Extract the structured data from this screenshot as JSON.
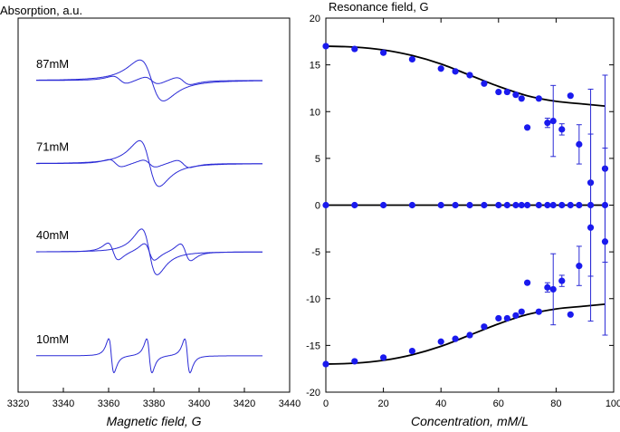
{
  "colors": {
    "spectra": "#2b2bd6",
    "points": "#1a1aee",
    "fit": "#000000"
  },
  "chart_data": [
    {
      "type": "line",
      "ylabel": "Absorption, a.u.",
      "xlabel": "Magnetic field, G",
      "xlim": [
        3320,
        3440
      ],
      "xticks": [
        "3320",
        "3340",
        "3360",
        "3380",
        "3400",
        "3420",
        "3440"
      ],
      "yticks": [],
      "grid": false,
      "spectra": [
        {
          "label": "87mM",
          "center": 3379,
          "width": 9.0,
          "amp": 0.85,
          "hyperfine": 14.0,
          "hf_width": 5.5,
          "hf_amp": 0.22,
          "baseline": 3.0
        },
        {
          "label": "71mM",
          "center": 3378,
          "width": 7.5,
          "amp": 0.95,
          "hyperfine": 15.0,
          "hf_width": 5.0,
          "hf_amp": 0.22,
          "baseline": 2.2
        },
        {
          "label": "40mM",
          "center": 3378,
          "width": 6.0,
          "amp": 0.95,
          "hyperfine": 16.0,
          "hf_width": 4.0,
          "hf_amp": 0.5,
          "baseline": 1.35
        },
        {
          "label": "10mM",
          "center": 3378,
          "width": 2.0,
          "amp": 0,
          "hyperfine": 16.8,
          "hf_width": 2.0,
          "hf_amp": 1.0,
          "baseline": 0.35
        }
      ]
    },
    {
      "type": "scatter",
      "ylabel": "Resonance field, G",
      "xlabel": "Concentration, mM/L",
      "xlim": [
        0,
        100
      ],
      "ylim": [
        -20,
        20
      ],
      "xticks": [
        "0",
        "20",
        "40",
        "60",
        "80",
        "100"
      ],
      "yticks": [
        "-20",
        "-15",
        "-10",
        "-5",
        "0",
        "5",
        "10",
        "15",
        "20"
      ],
      "grid": false,
      "series": [
        {
          "x": [
            0,
            10,
            20,
            30,
            40,
            45,
            50,
            55,
            60,
            63,
            66,
            68,
            70,
            74,
            77,
            79,
            82,
            85,
            88,
            92,
            97
          ],
          "y": [
            17.0,
            16.7,
            16.3,
            15.6,
            14.6,
            14.3,
            13.9,
            13.0,
            12.1,
            12.1,
            11.8,
            11.4,
            8.3,
            11.4,
            8.8,
            9.0,
            8.1,
            11.7,
            6.5,
            2.4,
            3.9
          ],
          "yerr": [
            0,
            0,
            0,
            0,
            0,
            0,
            0,
            0,
            0,
            0,
            0,
            0,
            0,
            0,
            0.5,
            3.8,
            0.6,
            0,
            2.1,
            10.0,
            10.0
          ]
        },
        {
          "x": [
            0,
            10,
            20,
            30,
            40,
            45,
            50,
            55,
            60,
            63,
            66,
            68,
            70,
            74,
            77,
            79,
            82,
            85,
            88,
            92,
            97
          ],
          "y": [
            -17.0,
            -16.7,
            -16.3,
            -15.6,
            -14.6,
            -14.3,
            -13.9,
            -13.0,
            -12.1,
            -12.1,
            -11.8,
            -11.4,
            -8.3,
            -11.4,
            -8.8,
            -9.0,
            -8.1,
            -11.7,
            -6.5,
            -2.4,
            -3.9
          ],
          "yerr": [
            0,
            0,
            0,
            0,
            0,
            0,
            0,
            0,
            0,
            0,
            0,
            0,
            0,
            0,
            0.5,
            3.8,
            0.6,
            0,
            2.1,
            10.0,
            10.0
          ]
        },
        {
          "x": [
            0,
            10,
            20,
            30,
            40,
            45,
            50,
            55,
            60,
            63,
            66,
            68,
            70,
            74,
            77,
            79,
            82,
            85,
            88,
            92,
            97
          ],
          "y": [
            0,
            0,
            0,
            0,
            0,
            0,
            0,
            0,
            0,
            0,
            0,
            0,
            0,
            0,
            0,
            0,
            0,
            0,
            0,
            0,
            0
          ]
        }
      ],
      "fit_curves": [
        {
          "x": [
            0,
            10,
            20,
            30,
            40,
            50,
            60,
            70,
            80,
            90,
            97
          ],
          "y": [
            17.0,
            16.9,
            16.6,
            16.0,
            15.1,
            13.9,
            12.7,
            11.7,
            11.1,
            10.8,
            10.6
          ]
        },
        {
          "x": [
            0,
            10,
            20,
            30,
            40,
            50,
            60,
            70,
            80,
            90,
            97
          ],
          "y": [
            -17.0,
            -16.9,
            -16.6,
            -16.0,
            -15.1,
            -13.9,
            -12.7,
            -11.7,
            -11.1,
            -10.8,
            -10.6
          ]
        },
        {
          "x": [
            0,
            97
          ],
          "y": [
            0,
            0
          ]
        }
      ]
    }
  ]
}
